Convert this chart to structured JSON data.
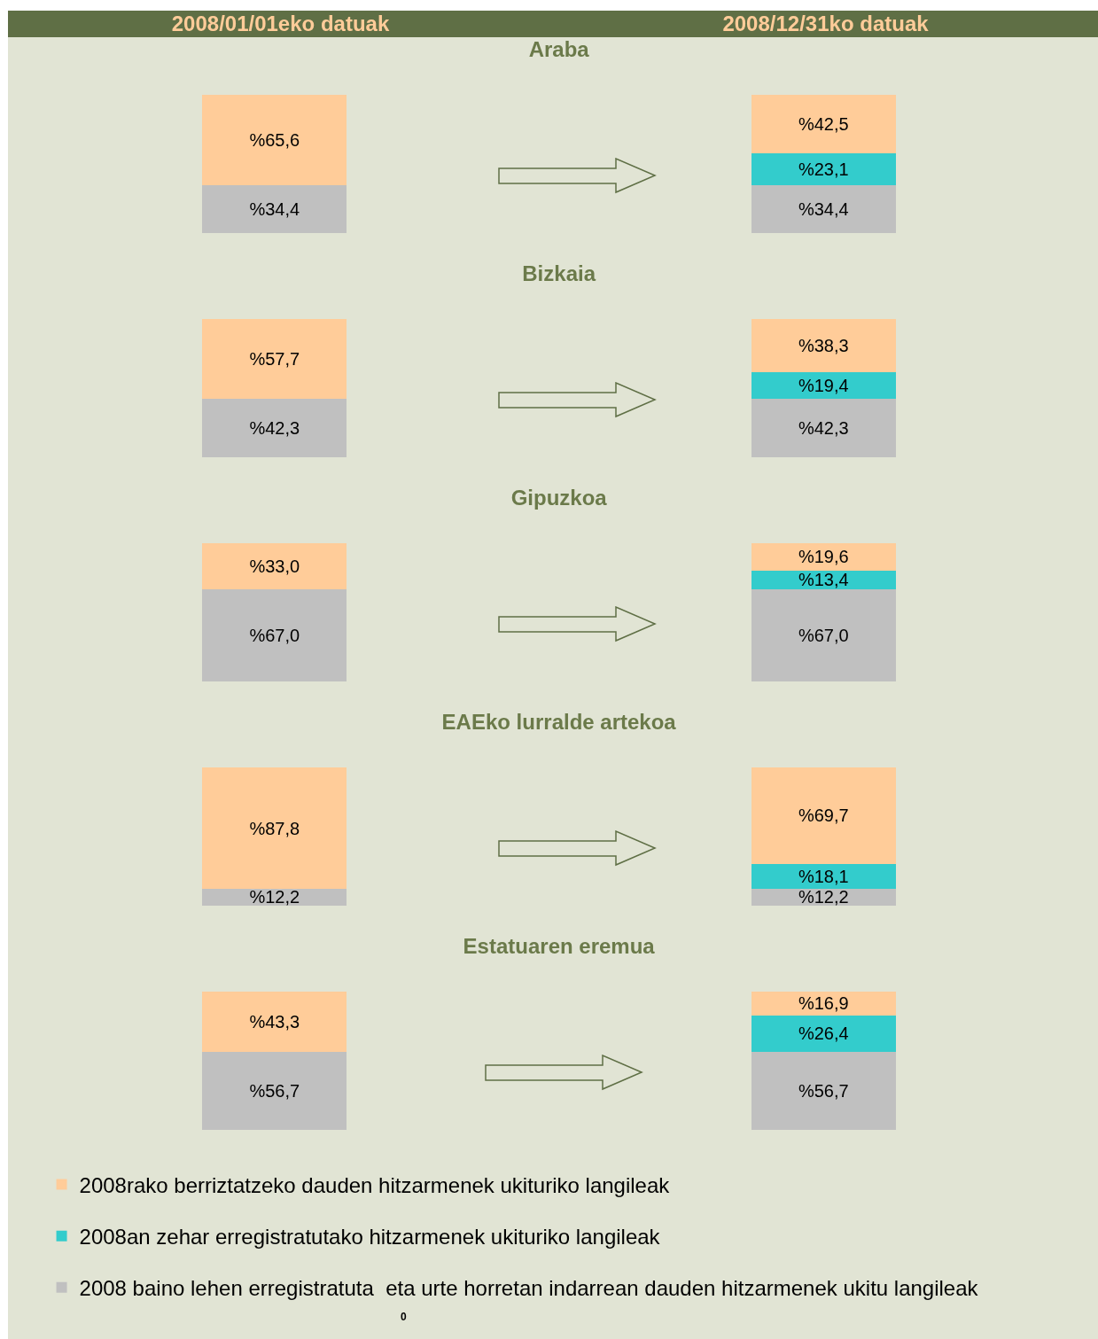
{
  "chart_data": [
    {
      "type": "bar",
      "title": "Araba",
      "categories": [
        null,
        null
      ],
      "stacked": true,
      "annotations": [
        "2008/01/01eko datuak",
        "2008/12/31ko datuak"
      ],
      "series": [
        {
          "color": "#c0c0c0",
          "values": [
            34.4,
            34.4
          ],
          "value_labels": [
            "%34,4",
            "%34,4"
          ]
        },
        {
          "color": "#33cccc",
          "values": [
            null,
            23.1
          ],
          "value_labels": [
            null,
            "%23,1"
          ]
        },
        {
          "color": "#ffcc99",
          "values": [
            65.6,
            42.5
          ],
          "value_labels": [
            "%65,6",
            "%42,5"
          ]
        }
      ]
    },
    {
      "type": "bar",
      "title": "Bizkaia",
      "categories": [
        null,
        null
      ],
      "stacked": true,
      "series": [
        {
          "color": "#c0c0c0",
          "values": [
            42.3,
            42.3
          ],
          "value_labels": [
            "%42,3",
            "%42,3"
          ]
        },
        {
          "color": "#33cccc",
          "values": [
            null,
            19.4
          ],
          "value_labels": [
            null,
            "%19,4"
          ]
        },
        {
          "color": "#ffcc99",
          "values": [
            57.7,
            38.3
          ],
          "value_labels": [
            "%57,7",
            "%38,3"
          ]
        }
      ]
    },
    {
      "type": "bar",
      "title": "Gipuzkoa",
      "categories": [
        null,
        null
      ],
      "stacked": true,
      "series": [
        {
          "color": "#c0c0c0",
          "values": [
            67.0,
            67.0
          ],
          "value_labels": [
            "%67,0",
            "%67,0"
          ]
        },
        {
          "color": "#33cccc",
          "values": [
            null,
            13.4
          ],
          "value_labels": [
            null,
            "%13,4"
          ]
        },
        {
          "color": "#ffcc99",
          "values": [
            33.0,
            19.6
          ],
          "value_labels": [
            "%33,0",
            "%19,6"
          ]
        }
      ]
    },
    {
      "type": "bar",
      "title": "EAEko lurralde artekoa",
      "categories": [
        null,
        null
      ],
      "stacked": true,
      "series": [
        {
          "color": "#c0c0c0",
          "values": [
            12.2,
            12.2
          ],
          "value_labels": [
            "%12,2",
            "%12,2"
          ]
        },
        {
          "color": "#33cccc",
          "values": [
            null,
            18.1
          ],
          "value_labels": [
            null,
            "%18,1"
          ]
        },
        {
          "color": "#ffcc99",
          "values": [
            87.8,
            69.7
          ],
          "value_labels": [
            "%87,8",
            "%69,7"
          ]
        }
      ]
    },
    {
      "type": "bar",
      "title": "Estatuaren eremua",
      "categories": [
        null,
        null
      ],
      "stacked": true,
      "legend": "bottom",
      "annotations": [
        "0"
      ],
      "series": [
        {
          "name": "2008 baino lehen erregistratuta  eta urte horretan indarrean dauden hitzarmenek ukitu langileak",
          "color": "#c0c0c0",
          "values": [
            56.7,
            56.7
          ],
          "value_labels": [
            "%56,7",
            "%56,7"
          ]
        },
        {
          "name": "2008an zehar erregistratutako hitzarmenek ukituriko langileak",
          "color": "#33cccc",
          "values": [
            null,
            26.4
          ],
          "value_labels": [
            null,
            "%26,4"
          ]
        },
        {
          "name": "2008rako berriztatzeko dauden hitzarmenek ukituriko langileak",
          "color": "#ffcc99",
          "values": [
            43.3,
            16.9
          ],
          "value_labels": [
            "%43,3",
            "%16,9"
          ]
        }
      ]
    }
  ]
}
